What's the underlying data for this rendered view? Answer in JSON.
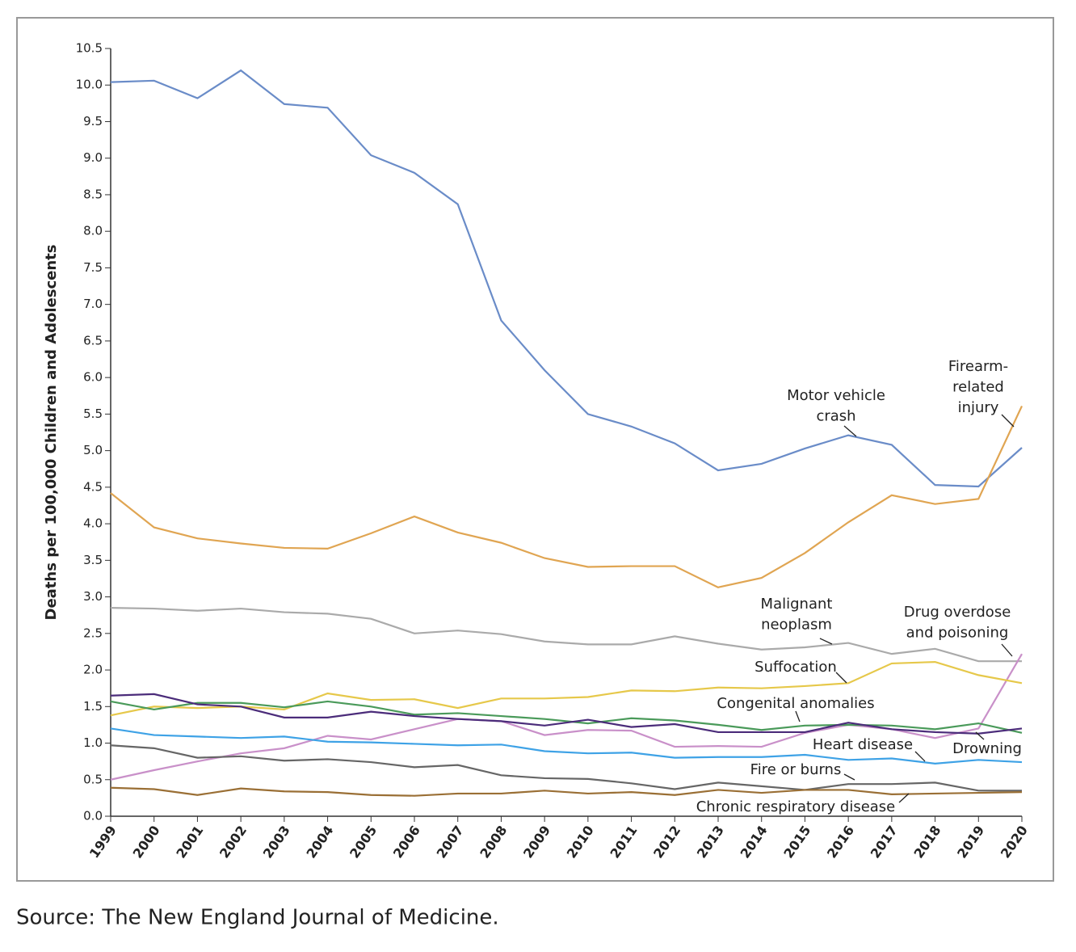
{
  "chart_data": {
    "type": "line",
    "ylabel": "Deaths per 100,000 Children and Adolescents",
    "categories": [
      "1999",
      "2000",
      "2001",
      "2002",
      "2003",
      "2004",
      "2005",
      "2006",
      "2007",
      "2008",
      "2009",
      "2010",
      "2011",
      "2012",
      "2013",
      "2014",
      "2015",
      "2016",
      "2017",
      "2018",
      "2019",
      "2020"
    ],
    "ylim": [
      0,
      10.5
    ],
    "yticks": [
      {
        "value": 0,
        "label": "0.0"
      },
      {
        "value": 0.5,
        "label": "0.5"
      },
      {
        "value": 1,
        "label": "1.0"
      },
      {
        "value": 1.5,
        "label": "1.5"
      },
      {
        "value": 2,
        "label": "2.0"
      },
      {
        "value": 2.5,
        "label": "2.5"
      },
      {
        "value": 3,
        "label": "3.0"
      },
      {
        "value": 3.5,
        "label": "3.5"
      },
      {
        "value": 4,
        "label": "4.0"
      },
      {
        "value": 4.5,
        "label": "4.5"
      },
      {
        "value": 5,
        "label": "5.0"
      },
      {
        "value": 5.5,
        "label": "5.5"
      },
      {
        "value": 6,
        "label": "6.0"
      },
      {
        "value": 6.5,
        "label": "6.5"
      },
      {
        "value": 7,
        "label": "7.0"
      },
      {
        "value": 7.5,
        "label": "7.5"
      },
      {
        "value": 8,
        "label": "8.0"
      },
      {
        "value": 8.5,
        "label": "8.5"
      },
      {
        "value": 9,
        "label": "9.0"
      },
      {
        "value": 9.5,
        "label": "9.5"
      },
      {
        "value": 10,
        "label": "10.0"
      },
      {
        "value": 10.5,
        "label": "10.5"
      }
    ],
    "series": [
      {
        "name": "Motor vehicle crash",
        "color": "#6a8cc8",
        "values": [
          10.04,
          10.06,
          9.82,
          10.2,
          9.74,
          9.69,
          9.04,
          8.8,
          8.37,
          6.78,
          6.1,
          5.5,
          5.33,
          5.1,
          4.73,
          4.82,
          5.03,
          5.21,
          5.08,
          4.53,
          4.51,
          5.04
        ]
      },
      {
        "name": "Firearm-related injury",
        "color": "#e0a552",
        "values": [
          4.42,
          3.95,
          3.8,
          3.73,
          3.67,
          3.66,
          3.87,
          4.1,
          3.88,
          3.74,
          3.53,
          3.41,
          3.42,
          3.42,
          3.13,
          3.26,
          3.6,
          4.02,
          4.39,
          4.27,
          4.34,
          5.61
        ]
      },
      {
        "name": "Malignant neoplasm",
        "color": "#aaaaaa",
        "values": [
          2.85,
          2.84,
          2.81,
          2.84,
          2.79,
          2.77,
          2.7,
          2.5,
          2.54,
          2.49,
          2.39,
          2.35,
          2.35,
          2.46,
          2.36,
          2.28,
          2.31,
          2.37,
          2.22,
          2.29,
          2.12,
          2.12
        ]
      },
      {
        "name": "Drug overdose and poisoning",
        "color": "#c990c9",
        "values": [
          0.5,
          0.63,
          0.75,
          0.86,
          0.93,
          1.1,
          1.05,
          1.19,
          1.33,
          1.3,
          1.11,
          1.18,
          1.17,
          0.95,
          0.96,
          0.95,
          1.14,
          1.25,
          1.19,
          1.07,
          1.2,
          2.22
        ]
      },
      {
        "name": "Suffocation",
        "color": "#e6c84a",
        "values": [
          1.38,
          1.5,
          1.48,
          1.5,
          1.46,
          1.68,
          1.59,
          1.6,
          1.48,
          1.61,
          1.61,
          1.63,
          1.72,
          1.71,
          1.76,
          1.75,
          1.78,
          1.82,
          2.09,
          2.11,
          1.93,
          1.82
        ]
      },
      {
        "name": "Congenital anomalies",
        "color": "#4a9a5a",
        "values": [
          1.57,
          1.46,
          1.55,
          1.55,
          1.49,
          1.57,
          1.5,
          1.39,
          1.41,
          1.37,
          1.33,
          1.27,
          1.34,
          1.31,
          1.25,
          1.18,
          1.24,
          1.25,
          1.24,
          1.19,
          1.27,
          1.14
        ]
      },
      {
        "name": "Heart disease",
        "color": "#3ea2e6",
        "values": [
          1.2,
          1.11,
          1.09,
          1.07,
          1.09,
          1.02,
          1.01,
          0.99,
          0.97,
          0.98,
          0.89,
          0.86,
          0.87,
          0.8,
          0.81,
          0.81,
          0.84,
          0.77,
          0.79,
          0.72,
          0.77,
          0.74
        ]
      },
      {
        "name": "Drowning",
        "color": "#4b2c7a",
        "values": [
          1.65,
          1.67,
          1.53,
          1.5,
          1.35,
          1.35,
          1.43,
          1.37,
          1.33,
          1.3,
          1.24,
          1.32,
          1.22,
          1.26,
          1.15,
          1.15,
          1.15,
          1.28,
          1.19,
          1.15,
          1.13,
          1.2
        ]
      },
      {
        "name": "Fire or burns",
        "color": "#666666",
        "values": [
          0.97,
          0.93,
          0.8,
          0.82,
          0.76,
          0.78,
          0.74,
          0.67,
          0.7,
          0.56,
          0.52,
          0.51,
          0.45,
          0.37,
          0.46,
          0.41,
          0.36,
          0.44,
          0.44,
          0.46,
          0.35,
          0.35
        ]
      },
      {
        "name": "Chronic respiratory disease",
        "color": "#9a6f35",
        "values": [
          0.39,
          0.37,
          0.29,
          0.38,
          0.34,
          0.33,
          0.29,
          0.28,
          0.31,
          0.31,
          0.35,
          0.31,
          0.33,
          0.29,
          0.36,
          0.32,
          0.36,
          0.36,
          0.3,
          0.31,
          0.32,
          0.33
        ]
      }
    ]
  },
  "source": "Source: The New England Journal of Medicine."
}
